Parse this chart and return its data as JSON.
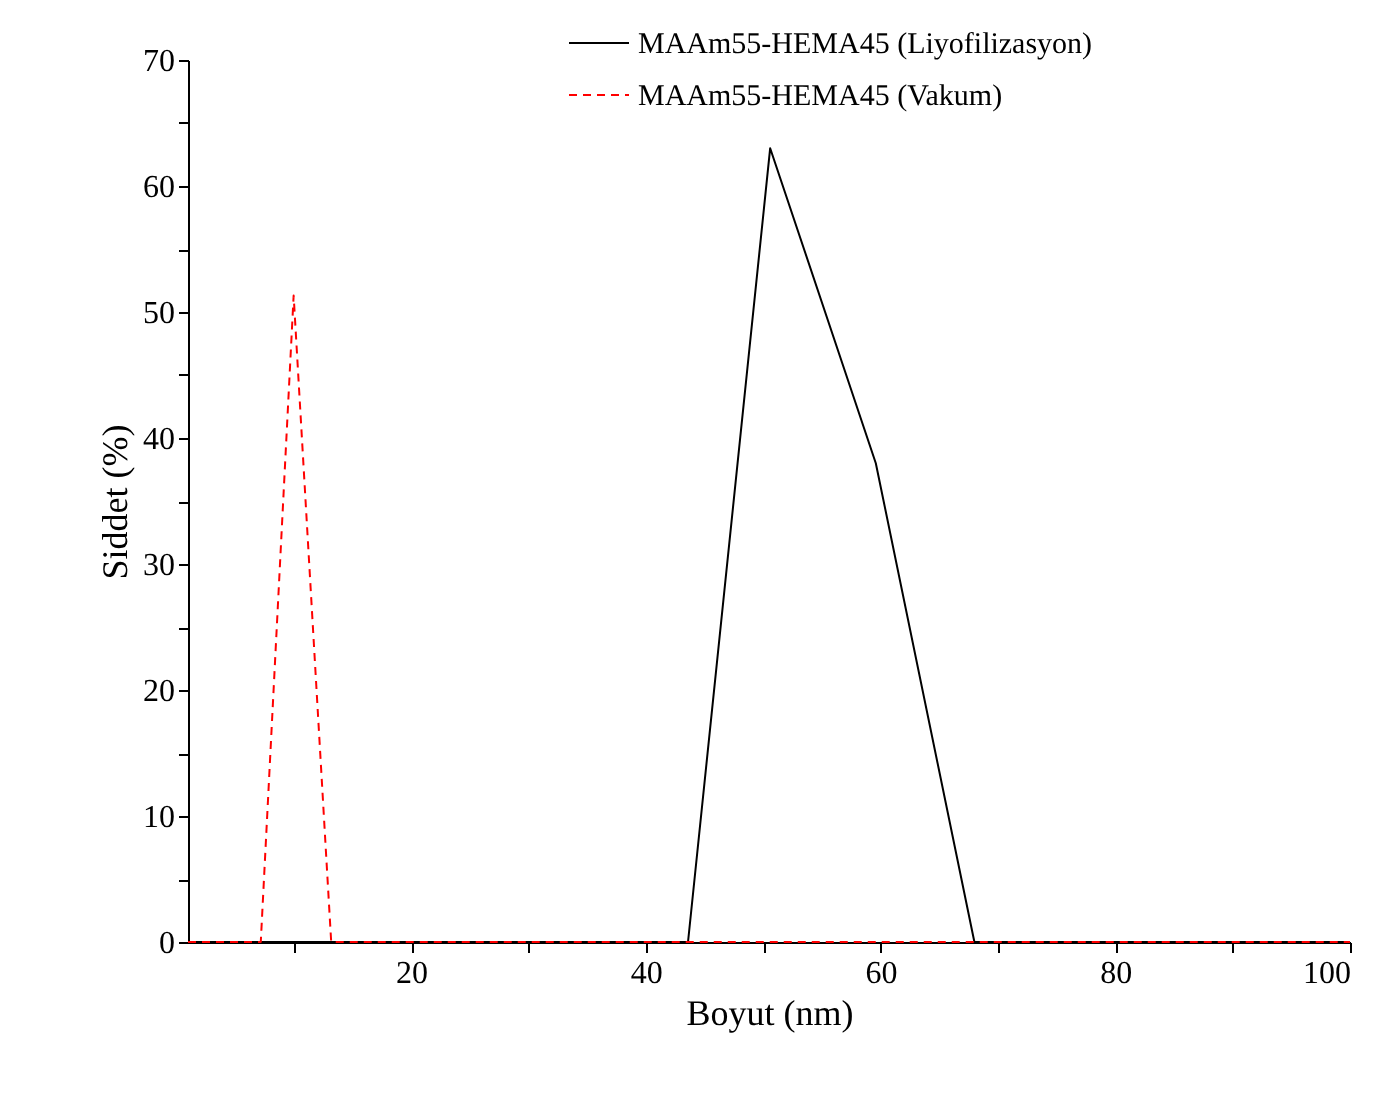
{
  "chart_data": {
    "type": "line",
    "xlabel": "Boyut (nm)",
    "ylabel": "Siddet (%)",
    "xlim": [
      1,
      100
    ],
    "ylim": [
      0,
      70
    ],
    "xticks": [
      {
        "value": 10,
        "label": null
      },
      20,
      {
        "value": 30,
        "label": null
      },
      40,
      {
        "value": 50,
        "label": null
      },
      60,
      {
        "value": 70,
        "label": null
      },
      80,
      {
        "value": 90,
        "label": null
      },
      100
    ],
    "yticks": [
      0,
      {
        "value": 5,
        "label": null
      },
      10,
      {
        "value": 15,
        "label": null
      },
      20,
      {
        "value": 25,
        "label": null
      },
      30,
      {
        "value": 35,
        "label": null
      },
      40,
      {
        "value": 45,
        "label": null
      },
      50,
      {
        "value": 55,
        "label": null
      },
      60,
      {
        "value": 65,
        "label": null
      },
      70
    ],
    "legend": "top right",
    "series": [
      {
        "name": "MAAm55-HEMA45 (Liyofilizasyon)",
        "color": "#000000",
        "line_style": "solid",
        "x": [
          1,
          43.6,
          50.6,
          59.6,
          68,
          100
        ],
        "values": [
          0,
          0,
          63,
          38,
          0,
          0
        ]
      },
      {
        "name": "MAAm55-HEMA45 (Vakum)",
        "color": "#ff0000",
        "line_style": "dashed",
        "x": [
          1,
          7.2,
          10,
          13.2,
          100
        ],
        "values": [
          0,
          0,
          51.3,
          0,
          0
        ]
      }
    ]
  }
}
